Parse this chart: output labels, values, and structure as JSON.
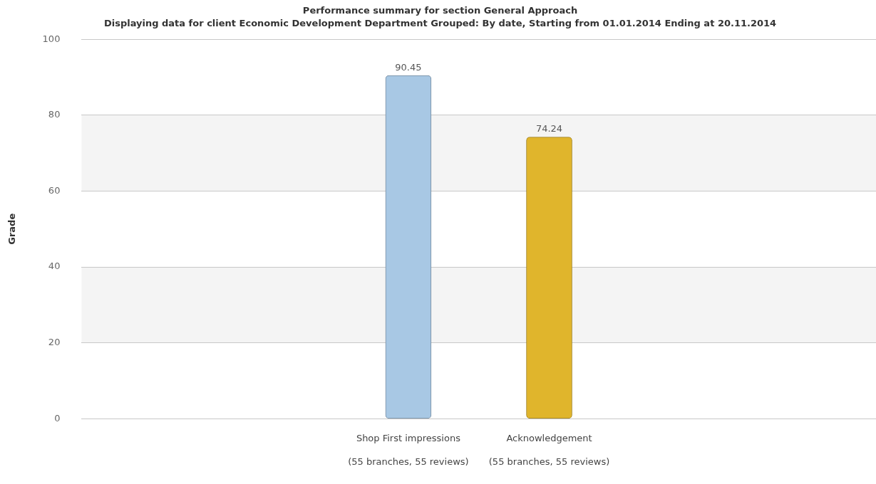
{
  "chart_data": {
    "type": "bar",
    "title": "Performance summary for section General Approach",
    "subtitle": "Displaying data for client Economic Development Department Grouped: By date, Starting from 01.01.2014 Ending at 20.11.2014",
    "ylabel": "Grade",
    "categories": [
      "Shop First impressions\n(55 branches, 55 reviews)",
      "Acknowledgement\n(55 branches, 55 reviews)"
    ],
    "values": [
      90.45,
      74.24
    ],
    "colors": [
      "#a8c8e4",
      "#e0b52c"
    ],
    "ylim": [
      0,
      100
    ],
    "yticks": [
      0,
      20,
      40,
      60,
      80,
      100
    ],
    "grid": "y",
    "bands": [
      {
        "axis": "y",
        "from": 20,
        "to": 40,
        "color": "#f4f4f4"
      },
      {
        "axis": "y",
        "from": 60,
        "to": 80,
        "color": "#f4f4f4"
      }
    ],
    "data_labels": true,
    "legend": false
  }
}
